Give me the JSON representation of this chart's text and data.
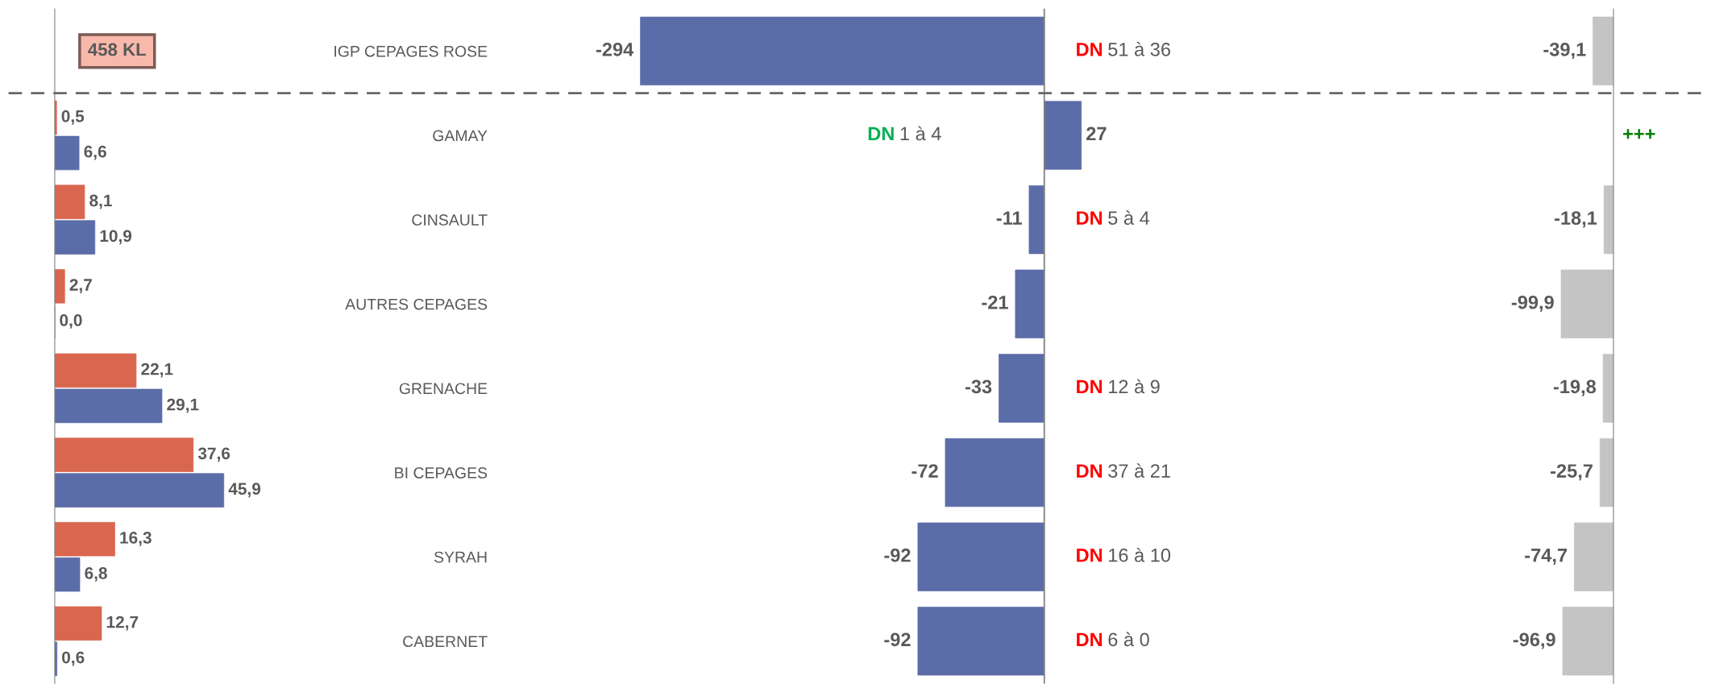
{
  "chart_data": [
    {
      "type": "bar",
      "orientation": "horizontal",
      "categories": [
        "IGP CEPAGES ROSE",
        "GAMAY",
        "CINSAULT",
        "AUTRES CEPAGES",
        "GRENACHE",
        "BI CEPAGES",
        "SYRAH",
        "CABERNET"
      ],
      "series": [
        {
          "color": "#d9664f",
          "values": [
            null,
            0.5,
            8.1,
            2.7,
            22.1,
            37.6,
            16.3,
            12.7
          ],
          "value_labels": [
            null,
            "0,5",
            "8,1",
            "2,7",
            "22,1",
            "37,6",
            "16,3",
            "12,7"
          ]
        },
        {
          "color": "#5b6da8",
          "values": [
            null,
            6.6,
            10.9,
            0.0,
            29.1,
            45.9,
            6.8,
            0.6
          ],
          "value_labels": [
            null,
            "6,6",
            "10,9",
            "0,0",
            "29,1",
            "45,9",
            "6,8",
            "0,6"
          ]
        }
      ],
      "annotations": [
        "458 KL"
      ]
    },
    {
      "type": "bar",
      "orientation": "horizontal",
      "categories": [
        null,
        null,
        null,
        null,
        null,
        null,
        null,
        null
      ],
      "series": [
        {
          "color": "#5b6da8",
          "values": [
            -294,
            27,
            -11,
            -21,
            -33,
            -72,
            -92,
            -92
          ]
        }
      ],
      "data_labels": true,
      "annotations": [
        {
          "text": "DN 51 à 36"
        },
        {
          "text": "DN 1 à 4"
        },
        {
          "text": "DN 5 à 4"
        },
        null,
        {
          "text": "DN 12 à 9"
        },
        {
          "text": "DN 37 à 21"
        },
        {
          "text": "DN 16 à 10"
        },
        {
          "text": "DN 6 à 0"
        }
      ]
    },
    {
      "type": "bar",
      "orientation": "horizontal",
      "categories": [
        null,
        null,
        null,
        null,
        null,
        null,
        null,
        null
      ],
      "series": [
        {
          "color": "#c4c4c4",
          "values": [
            -39.1,
            null,
            -18.1,
            -99.9,
            -19.8,
            -25.7,
            -74.7,
            -96.9
          ],
          "value_labels": [
            "-39,1",
            "+++",
            "-18,1",
            "-99,9",
            "-19,8",
            "-25,7",
            "-74,7",
            "-96,9"
          ]
        }
      ]
    }
  ]
}
